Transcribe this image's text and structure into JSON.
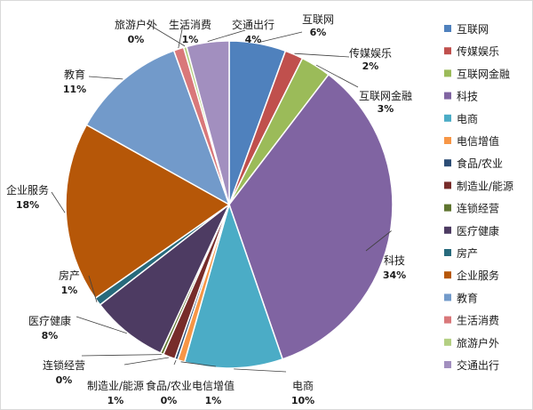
{
  "chart_data": {
    "type": "pie",
    "title": "",
    "legend_position": "right",
    "slices": [
      {
        "name": "互联网",
        "label": "互联网",
        "pct_label": "6%",
        "value": 5.6,
        "color": "#4f81bd"
      },
      {
        "name": "传媒娱乐",
        "label": "传媒娱乐",
        "pct_label": "2%",
        "value": 1.8,
        "color": "#c0504d"
      },
      {
        "name": "互联网金融",
        "label": "互联网金融",
        "pct_label": "3%",
        "value": 3.0,
        "color": "#9bbb59"
      },
      {
        "name": "科技",
        "label": "科技",
        "pct_label": "34%",
        "value": 34.3,
        "color": "#8064a2"
      },
      {
        "name": "电商",
        "label": "电商",
        "pct_label": "10%",
        "value": 9.7,
        "color": "#4bacc6"
      },
      {
        "name": "电信增值",
        "label": "电信增值",
        "pct_label": "1%",
        "value": 0.7,
        "color": "#f79646"
      },
      {
        "name": "食品/农业",
        "label": "食品/农业",
        "pct_label": "0%",
        "value": 0.3,
        "color": "#2c4d75"
      },
      {
        "name": "制造业/能源",
        "label": "制造业/能源",
        "pct_label": "1%",
        "value": 1.2,
        "color": "#772c2a"
      },
      {
        "name": "连锁经营",
        "label": "连锁经营",
        "pct_label": "0%",
        "value": 0.3,
        "color": "#5f7530"
      },
      {
        "name": "医疗健康",
        "label": "医疗健康",
        "pct_label": "8%",
        "value": 7.6,
        "color": "#4d3b62"
      },
      {
        "name": "房产",
        "label": "房产",
        "pct_label": "1%",
        "value": 0.8,
        "color": "#276a7c"
      },
      {
        "name": "企业服务",
        "label": "企业服务",
        "pct_label": "18%",
        "value": 17.8,
        "color": "#b65708"
      },
      {
        "name": "教育",
        "label": "教育",
        "pct_label": "11%",
        "value": 11.4,
        "color": "#729aca"
      },
      {
        "name": "生活消费",
        "label": "生活消费",
        "pct_label": "1%",
        "value": 1.0,
        "color": "#d9787a"
      },
      {
        "name": "旅游户外",
        "label": "旅游户外",
        "pct_label": "0%",
        "value": 0.3,
        "color": "#b3cf82"
      },
      {
        "name": "交通出行",
        "label": "交通出行",
        "pct_label": "4%",
        "value": 4.2,
        "color": "#a28fbf"
      }
    ]
  }
}
